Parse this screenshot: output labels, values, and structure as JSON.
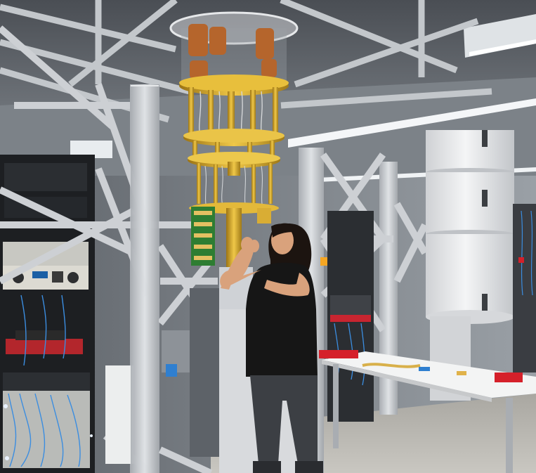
{
  "scene": {
    "colors": {
      "ceiling": "#5c6066",
      "frame": "#c9ccd0",
      "wall": "#8d939a",
      "floor": "#b8b6b0",
      "gold": "#d4a62a",
      "copper": "#b5652c",
      "dewar": "#e9eaec",
      "shirt": "#161616",
      "jeans": "#3c3f44",
      "hair": "#1c1410",
      "skin": "#d9a27c",
      "led": "#e9f2ff",
      "red_part": "#d5202a",
      "cable_blue": "#3b8de0"
    },
    "icons": [
      "dilution-refrigerator",
      "cryostat-dewar",
      "server-rack",
      "workbench",
      "technician"
    ]
  }
}
